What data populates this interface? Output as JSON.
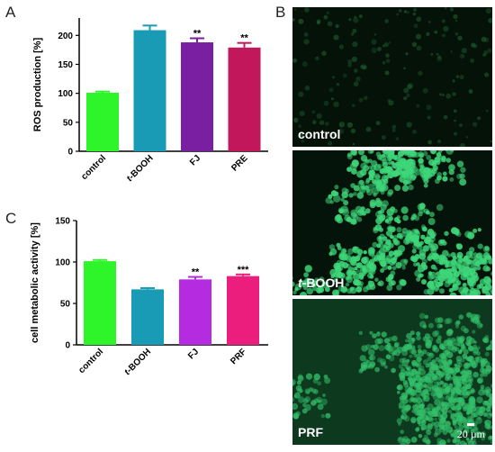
{
  "panels": {
    "A": "A",
    "B": "B",
    "C": "C"
  },
  "chart_data": [
    {
      "type": "bar",
      "panel": "A",
      "ylabel": "ROS production [%]",
      "xlabel": "",
      "categories": [
        "control",
        "t-BOOH",
        "FJ",
        "PRE"
      ],
      "values": [
        101,
        209,
        188,
        179
      ],
      "errors": [
        2,
        8,
        7,
        8
      ],
      "significance": [
        "",
        "",
        "**",
        "**"
      ],
      "colors": [
        "#2ef52a",
        "#1a9bb5",
        "#7b1fa2",
        "#c2185b"
      ],
      "ylim": [
        0,
        230
      ],
      "yticks": [
        0,
        50,
        100,
        150,
        200
      ],
      "grid": false
    },
    {
      "type": "bar",
      "panel": "C",
      "ylabel": "cell metabolic activity [%]",
      "xlabel": "",
      "categories": [
        "control",
        "t-BOOH",
        "FJ",
        "PRF"
      ],
      "values": [
        101,
        67,
        79,
        83
      ],
      "errors": [
        1.5,
        1.5,
        3,
        2
      ],
      "significance": [
        "",
        "",
        "**",
        "***"
      ],
      "colors": [
        "#2ef52a",
        "#1a9bb5",
        "#b42be0",
        "#ec1e7d"
      ],
      "ylim": [
        0,
        150
      ],
      "yticks": [
        0,
        50,
        100,
        150
      ],
      "grid": false
    }
  ],
  "micrographs": {
    "control_label": "control",
    "tbooh_label_italic": "t",
    "tbooh_label_rest": "-BOOH",
    "prf_label": "PRF",
    "scale_bar": "20 µm"
  }
}
